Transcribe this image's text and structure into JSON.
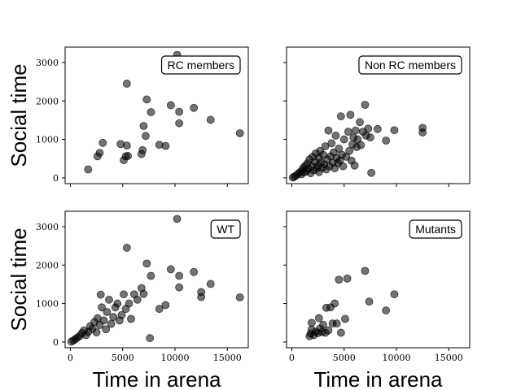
{
  "chart_data": [
    {
      "type": "scatter",
      "legend": "RC members",
      "ylabel": "Social time",
      "xlabel": "",
      "xlim": [
        -500,
        17000
      ],
      "ylim": [
        -150,
        3400
      ],
      "xticks": [
        0,
        5000,
        10000,
        15000
      ],
      "yticks": [
        0,
        1000,
        2000,
        3000
      ],
      "show_xtick_labels": false,
      "show_ytick_labels": true,
      "marker_color": "#000000",
      "marker_alpha": 0.55,
      "points": [
        {
          "x": 1700,
          "y": 220
        },
        {
          "x": 2600,
          "y": 560
        },
        {
          "x": 2800,
          "y": 650
        },
        {
          "x": 3100,
          "y": 910
        },
        {
          "x": 4800,
          "y": 880
        },
        {
          "x": 5100,
          "y": 460
        },
        {
          "x": 5300,
          "y": 560
        },
        {
          "x": 5500,
          "y": 570
        },
        {
          "x": 5400,
          "y": 840
        },
        {
          "x": 5400,
          "y": 2450
        },
        {
          "x": 6800,
          "y": 620
        },
        {
          "x": 6900,
          "y": 720
        },
        {
          "x": 7000,
          "y": 1350
        },
        {
          "x": 7200,
          "y": 1090
        },
        {
          "x": 7300,
          "y": 2040
        },
        {
          "x": 7700,
          "y": 1710
        },
        {
          "x": 8500,
          "y": 860
        },
        {
          "x": 9100,
          "y": 830
        },
        {
          "x": 9600,
          "y": 1890
        },
        {
          "x": 10200,
          "y": 3200
        },
        {
          "x": 10400,
          "y": 1720
        },
        {
          "x": 10400,
          "y": 1420
        },
        {
          "x": 11800,
          "y": 1820
        },
        {
          "x": 13400,
          "y": 1510
        },
        {
          "x": 16200,
          "y": 1160
        }
      ]
    },
    {
      "type": "scatter",
      "legend": "Non RC members",
      "ylabel": "",
      "xlabel": "",
      "xlim": [
        -500,
        17000
      ],
      "ylim": [
        -150,
        3400
      ],
      "xticks": [
        0,
        5000,
        10000,
        15000
      ],
      "yticks": [
        0,
        1000,
        2000,
        3000
      ],
      "show_xtick_labels": false,
      "show_ytick_labels": false,
      "marker_color": "#000000",
      "marker_alpha": 0.55,
      "points": [
        {
          "x": 100,
          "y": 10
        },
        {
          "x": 250,
          "y": 30
        },
        {
          "x": 400,
          "y": 60
        },
        {
          "x": 600,
          "y": 110
        },
        {
          "x": 800,
          "y": 150
        },
        {
          "x": 900,
          "y": 90
        },
        {
          "x": 1000,
          "y": 200
        },
        {
          "x": 1100,
          "y": 260
        },
        {
          "x": 1200,
          "y": 140
        },
        {
          "x": 1300,
          "y": 320
        },
        {
          "x": 1400,
          "y": 180
        },
        {
          "x": 1500,
          "y": 380
        },
        {
          "x": 1600,
          "y": 240
        },
        {
          "x": 1700,
          "y": 480
        },
        {
          "x": 1800,
          "y": 120
        },
        {
          "x": 1900,
          "y": 300
        },
        {
          "x": 2000,
          "y": 550
        },
        {
          "x": 2100,
          "y": 200
        },
        {
          "x": 2200,
          "y": 420
        },
        {
          "x": 2300,
          "y": 640
        },
        {
          "x": 2400,
          "y": 250
        },
        {
          "x": 2500,
          "y": 320
        },
        {
          "x": 2600,
          "y": 520
        },
        {
          "x": 2600,
          "y": 150
        },
        {
          "x": 2700,
          "y": 700
        },
        {
          "x": 2800,
          "y": 400
        },
        {
          "x": 2900,
          "y": 260
        },
        {
          "x": 3000,
          "y": 600
        },
        {
          "x": 3100,
          "y": 350
        },
        {
          "x": 3200,
          "y": 820
        },
        {
          "x": 3300,
          "y": 220
        },
        {
          "x": 3400,
          "y": 480
        },
        {
          "x": 3500,
          "y": 1230
        },
        {
          "x": 3600,
          "y": 300
        },
        {
          "x": 3700,
          "y": 560
        },
        {
          "x": 3800,
          "y": 900
        },
        {
          "x": 3900,
          "y": 400
        },
        {
          "x": 4000,
          "y": 660
        },
        {
          "x": 4100,
          "y": 250
        },
        {
          "x": 4200,
          "y": 1100
        },
        {
          "x": 4300,
          "y": 520
        },
        {
          "x": 4400,
          "y": 380
        },
        {
          "x": 4500,
          "y": 760
        },
        {
          "x": 4600,
          "y": 450
        },
        {
          "x": 4700,
          "y": 1600
        },
        {
          "x": 4800,
          "y": 600
        },
        {
          "x": 4900,
          "y": 300
        },
        {
          "x": 5000,
          "y": 1000
        },
        {
          "x": 5200,
          "y": 550
        },
        {
          "x": 5400,
          "y": 1200
        },
        {
          "x": 5500,
          "y": 700
        },
        {
          "x": 5600,
          "y": 1640
        },
        {
          "x": 5700,
          "y": 450
        },
        {
          "x": 5800,
          "y": 870
        },
        {
          "x": 5900,
          "y": 1050
        },
        {
          "x": 6000,
          "y": 320
        },
        {
          "x": 6100,
          "y": 1230
        },
        {
          "x": 6200,
          "y": 800
        },
        {
          "x": 6300,
          "y": 1000
        },
        {
          "x": 6500,
          "y": 1450
        },
        {
          "x": 6600,
          "y": 850
        },
        {
          "x": 6800,
          "y": 1200
        },
        {
          "x": 7000,
          "y": 1900
        },
        {
          "x": 7100,
          "y": 1100
        },
        {
          "x": 7300,
          "y": 1280
        },
        {
          "x": 7500,
          "y": 1050
        },
        {
          "x": 7600,
          "y": 130
        },
        {
          "x": 8200,
          "y": 1270
        },
        {
          "x": 9000,
          "y": 970
        },
        {
          "x": 9800,
          "y": 1240
        },
        {
          "x": 12500,
          "y": 1300
        },
        {
          "x": 12500,
          "y": 1180
        }
      ]
    },
    {
      "type": "scatter",
      "legend": "WT",
      "ylabel": "Social time",
      "xlabel": "Time in arena",
      "xlim": [
        -500,
        17000
      ],
      "ylim": [
        -150,
        3400
      ],
      "xticks": [
        0,
        5000,
        10000,
        15000
      ],
      "yticks": [
        0,
        1000,
        2000,
        3000
      ],
      "show_xtick_labels": true,
      "show_ytick_labels": true,
      "marker_color": "#000000",
      "marker_alpha": 0.55,
      "points": [
        {
          "x": 100,
          "y": 10
        },
        {
          "x": 300,
          "y": 40
        },
        {
          "x": 500,
          "y": 80
        },
        {
          "x": 700,
          "y": 120
        },
        {
          "x": 900,
          "y": 160
        },
        {
          "x": 1100,
          "y": 230
        },
        {
          "x": 1300,
          "y": 300
        },
        {
          "x": 1500,
          "y": 180
        },
        {
          "x": 1700,
          "y": 260
        },
        {
          "x": 1900,
          "y": 410
        },
        {
          "x": 2100,
          "y": 340
        },
        {
          "x": 2300,
          "y": 520
        },
        {
          "x": 2500,
          "y": 250
        },
        {
          "x": 2600,
          "y": 620
        },
        {
          "x": 2800,
          "y": 440
        },
        {
          "x": 2900,
          "y": 1230
        },
        {
          "x": 3000,
          "y": 900
        },
        {
          "x": 3200,
          "y": 560
        },
        {
          "x": 3400,
          "y": 330
        },
        {
          "x": 3500,
          "y": 780
        },
        {
          "x": 3700,
          "y": 1100
        },
        {
          "x": 3900,
          "y": 470
        },
        {
          "x": 4100,
          "y": 650
        },
        {
          "x": 4300,
          "y": 900
        },
        {
          "x": 4500,
          "y": 1000
        },
        {
          "x": 4700,
          "y": 560
        },
        {
          "x": 4900,
          "y": 700
        },
        {
          "x": 5100,
          "y": 1240
        },
        {
          "x": 5300,
          "y": 860
        },
        {
          "x": 5400,
          "y": 2450
        },
        {
          "x": 5600,
          "y": 1000
        },
        {
          "x": 5800,
          "y": 600
        },
        {
          "x": 6100,
          "y": 1240
        },
        {
          "x": 6400,
          "y": 1100
        },
        {
          "x": 6800,
          "y": 1400
        },
        {
          "x": 7000,
          "y": 1250
        },
        {
          "x": 7300,
          "y": 2040
        },
        {
          "x": 7600,
          "y": 100
        },
        {
          "x": 7700,
          "y": 1720
        },
        {
          "x": 8500,
          "y": 860
        },
        {
          "x": 9100,
          "y": 960
        },
        {
          "x": 9600,
          "y": 1890
        },
        {
          "x": 10200,
          "y": 3200
        },
        {
          "x": 10400,
          "y": 1720
        },
        {
          "x": 10400,
          "y": 1420
        },
        {
          "x": 11800,
          "y": 1820
        },
        {
          "x": 12500,
          "y": 1300
        },
        {
          "x": 12500,
          "y": 1170
        },
        {
          "x": 13400,
          "y": 1510
        },
        {
          "x": 16200,
          "y": 1160
        }
      ]
    },
    {
      "type": "scatter",
      "legend": "Mutants",
      "ylabel": "",
      "xlabel": "Time in arena",
      "xlim": [
        -500,
        17000
      ],
      "ylim": [
        -150,
        3400
      ],
      "xticks": [
        0,
        5000,
        10000,
        15000
      ],
      "yticks": [
        0,
        1000,
        2000,
        3000
      ],
      "show_xtick_labels": true,
      "show_ytick_labels": false,
      "marker_color": "#000000",
      "marker_alpha": 0.55,
      "points": [
        {
          "x": 1700,
          "y": 150
        },
        {
          "x": 1800,
          "y": 220
        },
        {
          "x": 1900,
          "y": 320
        },
        {
          "x": 1900,
          "y": 500
        },
        {
          "x": 2100,
          "y": 180
        },
        {
          "x": 2300,
          "y": 270
        },
        {
          "x": 2500,
          "y": 230
        },
        {
          "x": 2600,
          "y": 620
        },
        {
          "x": 2700,
          "y": 350
        },
        {
          "x": 2900,
          "y": 260
        },
        {
          "x": 3000,
          "y": 450
        },
        {
          "x": 3200,
          "y": 240
        },
        {
          "x": 3300,
          "y": 890
        },
        {
          "x": 3500,
          "y": 300
        },
        {
          "x": 3700,
          "y": 900
        },
        {
          "x": 3900,
          "y": 480
        },
        {
          "x": 4100,
          "y": 1000
        },
        {
          "x": 4300,
          "y": 480
        },
        {
          "x": 4500,
          "y": 1620
        },
        {
          "x": 4700,
          "y": 240
        },
        {
          "x": 5100,
          "y": 600
        },
        {
          "x": 5300,
          "y": 1650
        },
        {
          "x": 7000,
          "y": 1850
        },
        {
          "x": 7400,
          "y": 1050
        },
        {
          "x": 9000,
          "y": 820
        },
        {
          "x": 9800,
          "y": 1240
        }
      ]
    }
  ]
}
